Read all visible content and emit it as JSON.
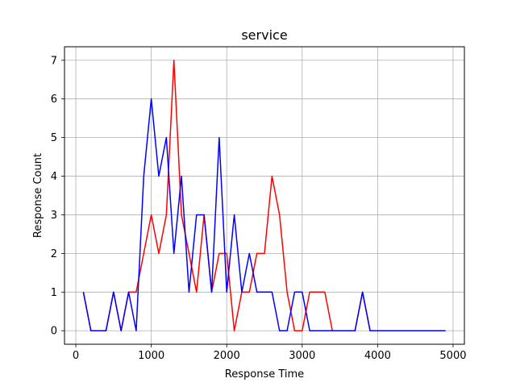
{
  "chart_data": {
    "type": "line",
    "title": "service",
    "xlabel": "Response Time",
    "ylabel": "Response Count",
    "xlim": [
      -150,
      5150
    ],
    "ylim": [
      -0.35,
      7.35
    ],
    "xticks": [
      0,
      1000,
      2000,
      3000,
      4000,
      5000
    ],
    "yticks": [
      0,
      1,
      2,
      3,
      4,
      5,
      6,
      7
    ],
    "grid": true,
    "x": [
      100,
      200,
      300,
      400,
      500,
      600,
      700,
      800,
      900,
      1000,
      1100,
      1200,
      1300,
      1400,
      1500,
      1600,
      1700,
      1800,
      1900,
      2000,
      2100,
      2200,
      2300,
      2400,
      2500,
      2600,
      2700,
      2800,
      2900,
      3000,
      3100,
      3200,
      3300,
      3400,
      3500,
      3600,
      3700,
      3800,
      3900,
      4000,
      4100,
      4200,
      4300,
      4400,
      4500,
      4600,
      4700,
      4800,
      4900
    ],
    "series": [
      {
        "color": "#ff0000",
        "values": [
          1,
          0,
          0,
          0,
          1,
          0,
          1,
          1,
          2,
          3,
          2,
          3,
          7,
          3,
          2,
          1,
          3,
          1,
          2,
          2,
          0,
          1,
          1,
          2,
          2,
          4,
          3,
          1,
          0,
          0,
          1,
          1,
          1,
          0,
          0,
          0,
          0,
          1,
          0,
          0,
          0,
          0,
          0,
          0,
          0,
          0,
          0,
          0,
          0
        ]
      },
      {
        "color": "#0000ff",
        "values": [
          1,
          0,
          0,
          0,
          1,
          0,
          1,
          0,
          4,
          6,
          4,
          5,
          2,
          4,
          1,
          3,
          3,
          1,
          5,
          1,
          3,
          1,
          2,
          1,
          1,
          1,
          0,
          0,
          1,
          1,
          0,
          0,
          0,
          0,
          0,
          0,
          0,
          1,
          0,
          0,
          0,
          0,
          0,
          0,
          0,
          0,
          0,
          0,
          0
        ]
      }
    ]
  }
}
